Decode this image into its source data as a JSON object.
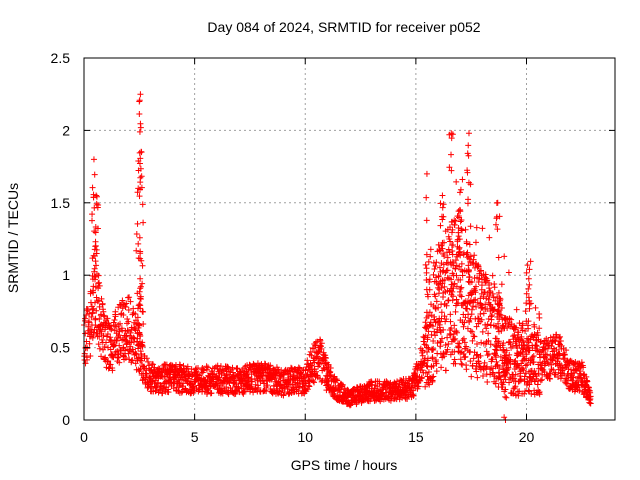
{
  "chart_data": {
    "type": "scatter",
    "title": "Day 084 of 2024, SRMTID for receiver p052",
    "xlabel": "GPS time / hours",
    "ylabel": "SRMTID / TECUs",
    "xlim": [
      0,
      24
    ],
    "ylim": [
      0,
      2.5
    ],
    "x_ticks": [
      0,
      5,
      10,
      15,
      20
    ],
    "y_ticks": [
      0,
      0.5,
      1,
      1.5,
      2,
      2.5
    ],
    "x_tick_labels": [
      "0",
      "5",
      "10",
      "15",
      "20"
    ],
    "y_tick_labels": [
      "0",
      "0.5",
      "1",
      "1.5",
      "2",
      "2.5"
    ],
    "grid": true,
    "marker": "+",
    "series": [
      {
        "name": "SRMTID",
        "color": "#ff0000",
        "profile_x": [
          0,
          0.2,
          0.4,
          0.5,
          0.6,
          0.7,
          0.9,
          1.2,
          1.6,
          2.0,
          2.3,
          2.5,
          2.7,
          3.0,
          3.5,
          4.0,
          4.5,
          5.0,
          6.0,
          7.0,
          8.0,
          9.0,
          10.0,
          10.6,
          11.0,
          11.5,
          12.0,
          13.0,
          14.0,
          14.8,
          15.2,
          15.6,
          16.0,
          16.5,
          17.0,
          17.5,
          18.0,
          18.5,
          19.0,
          19.5,
          20.0,
          20.5,
          21.0,
          21.5,
          22.0,
          22.5,
          22.9
        ],
        "profile_y": [
          0.55,
          0.6,
          0.75,
          0.95,
          0.85,
          0.7,
          0.55,
          0.5,
          0.6,
          0.65,
          0.55,
          0.5,
          0.35,
          0.3,
          0.28,
          0.3,
          0.28,
          0.27,
          0.28,
          0.27,
          0.3,
          0.26,
          0.28,
          0.45,
          0.3,
          0.2,
          0.15,
          0.2,
          0.2,
          0.22,
          0.35,
          0.6,
          0.75,
          0.85,
          0.9,
          0.75,
          0.65,
          0.6,
          0.5,
          0.4,
          0.45,
          0.4,
          0.42,
          0.45,
          0.3,
          0.3,
          0.15
        ],
        "spikes": [
          {
            "x": 0.45,
            "y": 1.8
          },
          {
            "x": 0.55,
            "y": 1.55
          },
          {
            "x": 2.45,
            "y": 1.6
          },
          {
            "x": 2.5,
            "y": 2.2
          },
          {
            "x": 2.55,
            "y": 2.25
          },
          {
            "x": 2.6,
            "y": 1.85
          },
          {
            "x": 15.5,
            "y": 1.7
          },
          {
            "x": 16.2,
            "y": 1.55
          },
          {
            "x": 16.6,
            "y": 1.98
          },
          {
            "x": 17.0,
            "y": 1.45
          },
          {
            "x": 17.4,
            "y": 1.98
          },
          {
            "x": 18.7,
            "y": 1.5
          },
          {
            "x": 19.05,
            "y": 0.0
          },
          {
            "x": 20.05,
            "y": 1.07
          }
        ]
      }
    ]
  }
}
